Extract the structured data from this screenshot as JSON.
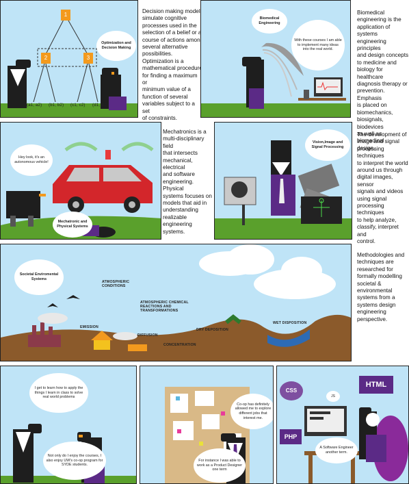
{
  "p1": {
    "nodes": [
      "1",
      "2",
      "3"
    ],
    "leaves": [
      "(a1, a2)",
      "(b1, b2)",
      "(c1, c2)",
      "(d1, d2)"
    ],
    "bubble": "Optimization and Decision Making",
    "text": "Decision making models\nsimulate cognitive\nprocesses used in the\nselection of a belief or a\ncourse of actions among\nseveral alternative\npossibilities.\nOptimization is a\nmathematical procedure\nfor finding a maximum or\nminimum value of a\nfunction of several\nvariables subject to a set\nof constraints."
  },
  "p2": {
    "bubble_title": "Biomedical Engineering",
    "bubble_text": "With these courses I am able to implement many ideas into the real world.",
    "text": "Biomedical\nengineering is the\napplication of systems\nengineering principles\nand design concepts\nto medicine and\nbiology for healthcare\ndiagnosis therapy or\nprevention. Emphasis\nis placed on\nbiomechanics,\nbiosignals, biodevices\nas well as biomedical\ndesign."
  },
  "p3": {
    "bubble_a": "Hey look, it's an autonomous vehicle!",
    "bubble_b": "Mechatronic and Physical Systems",
    "text": "Mechatronics is a\nmulti-disciplinary field\nthat intersects\nmechanical, electrical\nand software\nengineering. Physical\nsystems focuses on\nmodels that aid in\nunderstanding\nrealizable engineering\nsystems."
  },
  "p4": {
    "bubble": "Vision,Image and Signal Processing",
    "text": "The development of\nimage and signal\nprocessing techniques\nto interpret the world\naround us through\ndigital images, sensor\nsignals  and videos\nusing signal\nprocessing techniques\nto help analyze,\nclassify, interpret and\ncontrol."
  },
  "p5": {
    "bubble": "Societal Enviromental Systems",
    "labels": {
      "atm": "ATMOSPHERIC\nCONDITIONS",
      "chem": "ATMOSPHERIC CHEMICAL\nREACTIONS AND\nTRANSFORMATIONS",
      "emission": "EMISSION",
      "diffusion": "DIFFUSION",
      "dry": "DRY DEPOSITION",
      "wet": "WET DISPOSITION",
      "conc": "CONCENTRATION"
    },
    "text": "Methodologies and\ntechniques are\nresearched for\nformally modelling\nsocietal &\nenvironmental\nsystems from a\nsystems design\nengineering\nperspective."
  },
  "p6": {
    "bubble_a": "I get to learn how to apply the things I learn in class to solve real world problems",
    "bubble_b": "Not only do I enjoy the courses, I also enjoy UW's co-op program for SYDE students."
  },
  "p7": {
    "bubble_a": "Co-op has definitely allowed me to explore different jobs that interest me.",
    "bubble_b": "For instance I was able to work as a Product Designer one term"
  },
  "p8": {
    "badges": {
      "css": "CSS",
      "js": "JS",
      "html": "HTML",
      "php": "PHP"
    },
    "bubble": "A Software Engineer another term."
  },
  "colors": {
    "sky": "#bfe4f7",
    "grass": "#5aa02c",
    "orange": "#f39a1e",
    "purple": "#5b2a86",
    "dark": "#1e1e1e"
  }
}
